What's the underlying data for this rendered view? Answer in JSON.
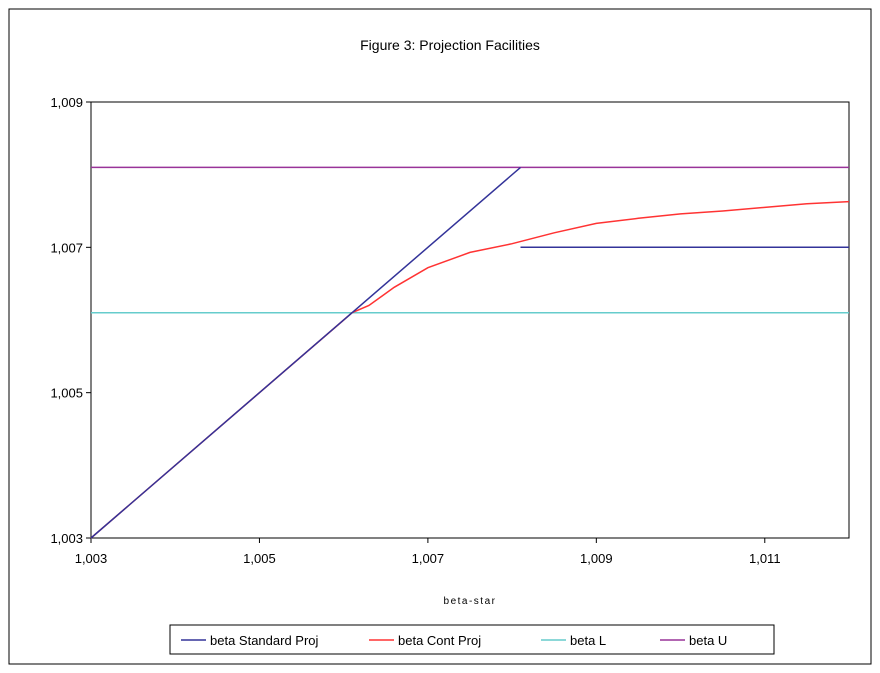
{
  "chart_data": {
    "type": "line",
    "title": "Figure 3: Projection Facilities",
    "xlabel": "beta-star",
    "ylabel": "",
    "xlim": [
      1.003,
      1.012
    ],
    "ylim": [
      1.003,
      1.009
    ],
    "x_ticks": [
      "1,003",
      "1,005",
      "1,007",
      "1,009",
      "1,011"
    ],
    "y_ticks": [
      "1,003",
      "1,005",
      "1,007",
      "1,009"
    ],
    "grid": false,
    "legend_position": "bottom",
    "series": [
      {
        "name": "beta Standard Proj",
        "color": "#333399",
        "segments": [
          [
            [
              1.003,
              1.003
            ],
            [
              1.0081,
              1.0081
            ]
          ],
          [
            [
              1.0081,
              1.007
            ],
            [
              1.012,
              1.007
            ]
          ]
        ]
      },
      {
        "name": "beta Cont Proj",
        "color": "#ff3333",
        "points": [
          [
            1.003,
            1.003
          ],
          [
            1.006,
            1.006
          ],
          [
            1.0061,
            1.0061
          ],
          [
            1.0063,
            1.0062
          ],
          [
            1.0066,
            1.00645
          ],
          [
            1.007,
            1.00672
          ],
          [
            1.0075,
            1.00693
          ],
          [
            1.008,
            1.00705
          ],
          [
            1.0085,
            1.0072
          ],
          [
            1.009,
            1.00733
          ],
          [
            1.0095,
            1.0074
          ],
          [
            1.01,
            1.00746
          ],
          [
            1.0105,
            1.0075
          ],
          [
            1.011,
            1.00755
          ],
          [
            1.0115,
            1.0076
          ],
          [
            1.012,
            1.00763
          ]
        ]
      },
      {
        "name": "beta L",
        "color": "#66cccc",
        "points": [
          [
            1.003,
            1.0061
          ],
          [
            1.012,
            1.0061
          ]
        ]
      },
      {
        "name": "beta U",
        "color": "#993399",
        "points": [
          [
            1.003,
            1.0081
          ],
          [
            1.012,
            1.0081
          ]
        ]
      }
    ]
  }
}
